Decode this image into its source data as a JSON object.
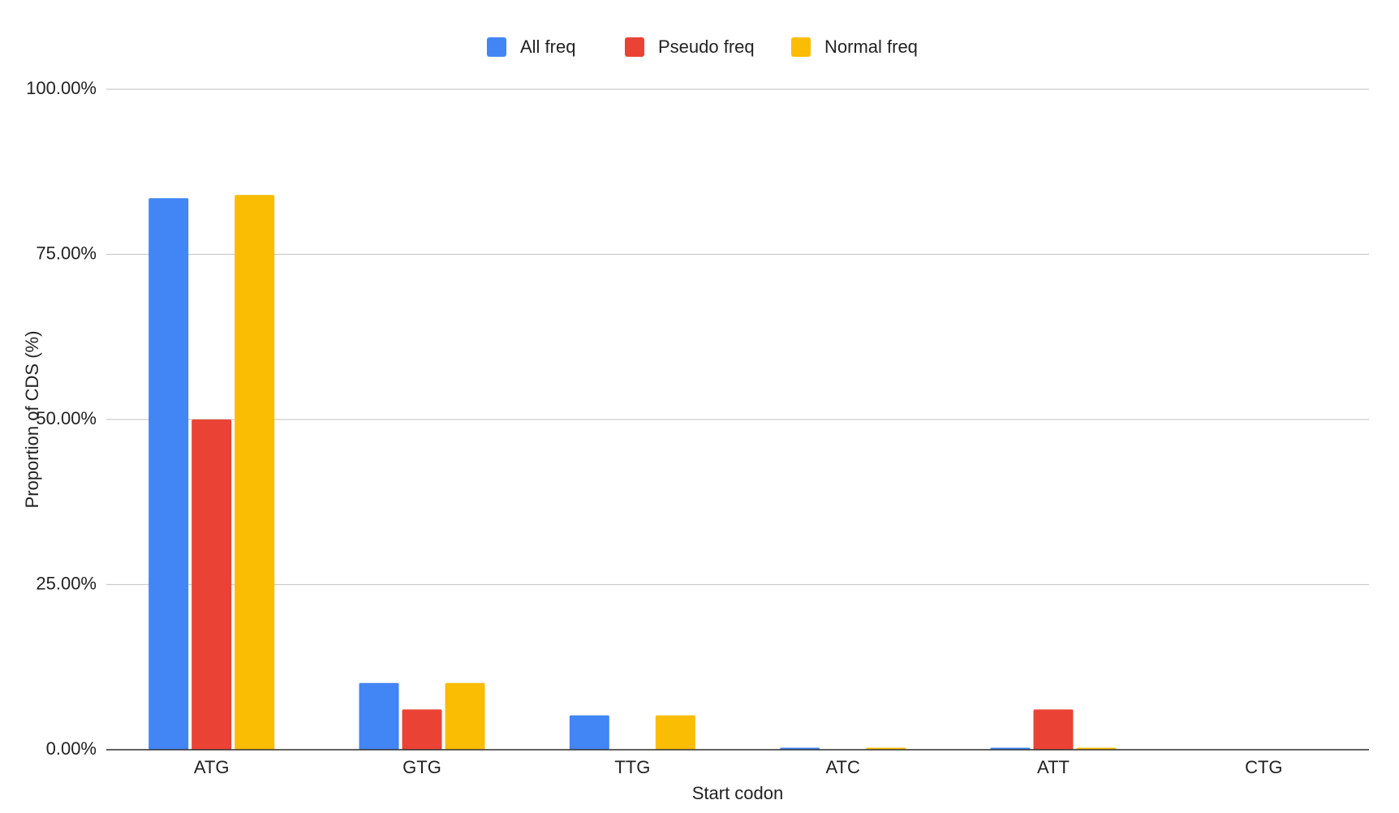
{
  "chart_data": {
    "type": "bar",
    "x_label": "Start codon",
    "y_label": "Proportion of  CDS (%)",
    "categories": [
      "ATG",
      "GTG",
      "TTG",
      "ATC",
      "ATT",
      "CTG"
    ],
    "series": [
      {
        "name": "All freq",
        "color": "#4285f4",
        "values": [
          83.5,
          10.1,
          5.2,
          0.3,
          0.3,
          0
        ]
      },
      {
        "name": "Pseudo freq",
        "color": "#ea4335",
        "values": [
          50,
          6.1,
          0,
          0,
          6.1,
          0
        ]
      },
      {
        "name": "Normal freq",
        "color": "#fbbc04",
        "values": [
          84,
          10.1,
          5.2,
          0.3,
          0.3,
          0
        ]
      }
    ],
    "ylim": [
      0,
      100
    ],
    "yticks": [
      {
        "value": 0,
        "label": "0.00%"
      },
      {
        "value": 25,
        "label": "25.00%"
      },
      {
        "value": 50,
        "label": "50.00%"
      },
      {
        "value": 75,
        "label": "75.00%"
      },
      {
        "value": 100,
        "label": "100.00%"
      }
    ],
    "grid": true,
    "legend": "top"
  }
}
